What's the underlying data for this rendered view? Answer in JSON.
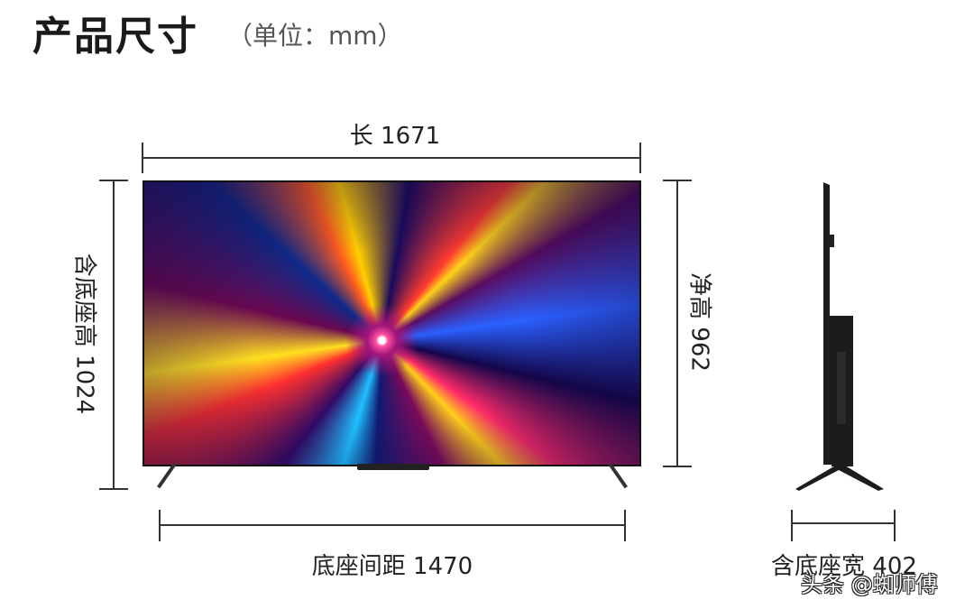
{
  "header": {
    "title": "产品尺寸",
    "unit": "（单位：mm）"
  },
  "dimensions": {
    "length": "长 1671",
    "height_with_stand": "含底座高 1024",
    "net_height": "净高 962",
    "stand_spacing": "底座间距 1470",
    "depth_with_stand": "含底座宽 402"
  },
  "watermark": "头条 @蜘师傅",
  "colors": {
    "line": "#333333",
    "text": "#222222"
  }
}
